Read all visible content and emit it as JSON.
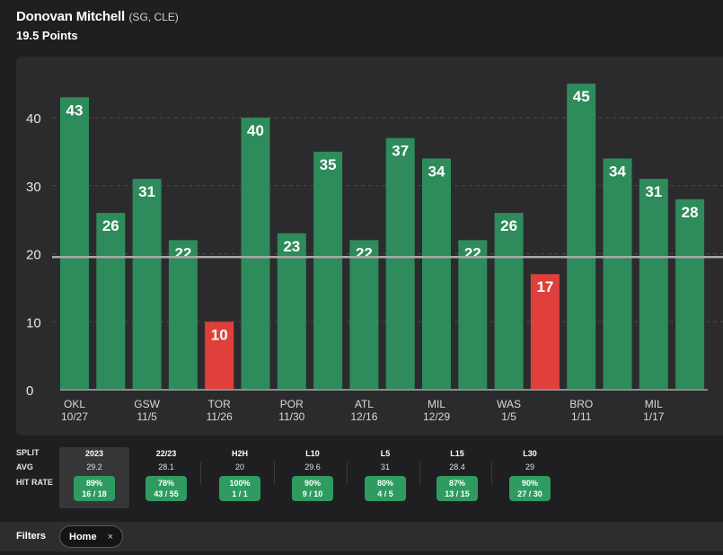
{
  "header": {
    "player_name": "Donovan Mitchell",
    "player_meta": "(SG, CLE)",
    "line_label": "19.5 Points"
  },
  "chart_data": {
    "type": "bar",
    "title": "Donovan Mitchell 19.5 Points",
    "line": 19.5,
    "ylim": [
      0,
      47
    ],
    "yticks": [
      0,
      10,
      20,
      30,
      40
    ],
    "values": [
      43,
      26,
      31,
      22,
      10,
      40,
      23,
      35,
      22,
      37,
      34,
      22,
      26,
      17,
      45,
      34,
      31,
      28
    ],
    "x_labels": [
      {
        "team": "OKL",
        "date": "10/27"
      },
      {
        "team": "",
        "date": ""
      },
      {
        "team": "GSW",
        "date": "11/5"
      },
      {
        "team": "",
        "date": ""
      },
      {
        "team": "TOR",
        "date": "11/26"
      },
      {
        "team": "",
        "date": ""
      },
      {
        "team": "POR",
        "date": "11/30"
      },
      {
        "team": "",
        "date": ""
      },
      {
        "team": "ATL",
        "date": "12/16"
      },
      {
        "team": "",
        "date": ""
      },
      {
        "team": "MIL",
        "date": "12/29"
      },
      {
        "team": "",
        "date": ""
      },
      {
        "team": "WAS",
        "date": "1/5"
      },
      {
        "team": "",
        "date": ""
      },
      {
        "team": "BRO",
        "date": "1/11"
      },
      {
        "team": "",
        "date": ""
      },
      {
        "team": "MIL",
        "date": "1/17"
      },
      {
        "team": "",
        "date": ""
      }
    ],
    "colors": {
      "over": "#2e8b5c",
      "under": "#e0403b",
      "line": "#a9a9a9"
    }
  },
  "splits": {
    "labels": {
      "split": "SPLIT",
      "avg": "AVG",
      "hit_rate": "HIT RATE"
    },
    "columns": [
      {
        "name": "2023",
        "avg": "29.2",
        "pct": "89%",
        "record": "16 / 18",
        "active": true
      },
      {
        "name": "22/23",
        "avg": "28.1",
        "pct": "78%",
        "record": "43 / 55",
        "active": false
      },
      {
        "name": "H2H",
        "avg": "20",
        "pct": "100%",
        "record": "1 / 1",
        "active": false
      },
      {
        "name": "L10",
        "avg": "29.6",
        "pct": "90%",
        "record": "9 / 10",
        "active": false
      },
      {
        "name": "L5",
        "avg": "31",
        "pct": "80%",
        "record": "4 / 5",
        "active": false
      },
      {
        "name": "L15",
        "avg": "28.4",
        "pct": "87%",
        "record": "13 / 15",
        "active": false
      },
      {
        "name": "L30",
        "avg": "29",
        "pct": "90%",
        "record": "27 / 30",
        "active": false
      }
    ]
  },
  "filters": {
    "label": "Filters",
    "chip_label": "Home",
    "chip_close": "×"
  }
}
